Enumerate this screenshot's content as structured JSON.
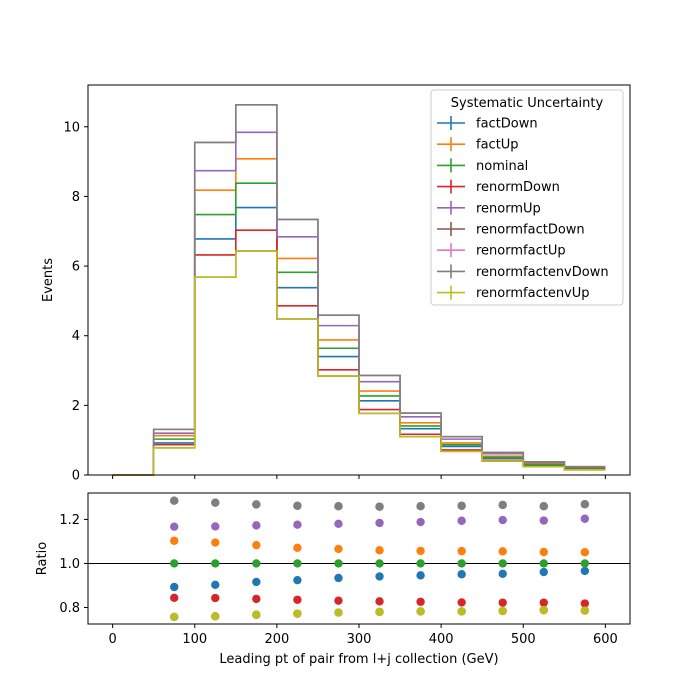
{
  "chart_data": {
    "type": "step",
    "x_edges": [
      0,
      50,
      100,
      150,
      200,
      250,
      300,
      350,
      400,
      450,
      500,
      550,
      600
    ],
    "xlim": [
      -30,
      630
    ],
    "x_ticks": [
      0,
      100,
      200,
      300,
      400,
      500,
      600
    ],
    "xlabel": "Leading pt of pair from l+j collection (GeV)",
    "top_panel": {
      "ylabel": "Events",
      "ylim": [
        0,
        11.2
      ],
      "y_ticks": [
        0,
        2,
        4,
        6,
        8,
        10
      ],
      "legend_title": "Systematic Uncertainty",
      "legend_position": "upper right",
      "series": [
        {
          "name": "factDown",
          "color": "#1f77b4",
          "values": [
            0,
            0.92,
            6.78,
            7.68,
            5.38,
            3.4,
            2.13,
            1.33,
            0.82,
            0.48,
            0.29,
            0.18
          ]
        },
        {
          "name": "factUp",
          "color": "#ff7f0e",
          "values": [
            0,
            1.13,
            8.18,
            9.08,
            6.22,
            3.88,
            2.41,
            1.5,
            0.92,
            0.54,
            0.32,
            0.2
          ]
        },
        {
          "name": "nominal",
          "color": "#2ca02c",
          "values": [
            0,
            1.03,
            7.48,
            8.38,
            5.82,
            3.64,
            2.27,
            1.41,
            0.87,
            0.51,
            0.3,
            0.19
          ]
        },
        {
          "name": "renormDown",
          "color": "#d62728",
          "values": [
            0,
            0.87,
            6.32,
            7.03,
            4.86,
            3.02,
            1.88,
            1.17,
            0.72,
            0.42,
            0.25,
            0.16
          ]
        },
        {
          "name": "renormUp",
          "color": "#9467bd",
          "values": [
            0,
            1.2,
            8.74,
            9.84,
            6.84,
            4.29,
            2.68,
            1.67,
            1.03,
            0.61,
            0.36,
            0.23
          ]
        },
        {
          "name": "renormfactDown",
          "color": "#8c564b",
          "values": [
            0,
            0.78,
            5.68,
            6.43,
            4.48,
            2.84,
            1.77,
            1.1,
            0.68,
            0.4,
            0.24,
            0.15
          ]
        },
        {
          "name": "renormfactUp",
          "color": "#e377c2",
          "values": [
            0,
            1.31,
            9.55,
            10.63,
            7.34,
            4.59,
            2.86,
            1.78,
            1.1,
            0.65,
            0.38,
            0.24
          ]
        },
        {
          "name": "renormfactenvDown",
          "color": "#7f7f7f",
          "values": [
            0,
            1.31,
            9.55,
            10.63,
            7.34,
            4.59,
            2.86,
            1.78,
            1.1,
            0.65,
            0.38,
            0.24
          ]
        },
        {
          "name": "renormfactenvUp",
          "color": "#bcbd22",
          "values": [
            0,
            0.78,
            5.68,
            6.43,
            4.48,
            2.84,
            1.77,
            1.1,
            0.68,
            0.4,
            0.24,
            0.15
          ]
        }
      ]
    },
    "bottom_panel": {
      "ylabel": "Ratio",
      "ylim": [
        0.725,
        1.32
      ],
      "y_ticks": [
        0.8,
        1.0,
        1.2
      ],
      "y_tick_labels": [
        "0.8",
        "1.0",
        "1.2"
      ],
      "reference_line": 1.0,
      "x": [
        75,
        125,
        175,
        225,
        275,
        325,
        375,
        425,
        475,
        525,
        575
      ],
      "series": [
        {
          "name": "factDown",
          "color": "#1f77b4",
          "values": [
            0.893,
            0.903,
            0.916,
            0.924,
            0.934,
            0.941,
            0.946,
            0.951,
            0.953,
            0.961,
            0.966
          ]
        },
        {
          "name": "factUp",
          "color": "#ff7f0e",
          "values": [
            1.103,
            1.095,
            1.083,
            1.071,
            1.066,
            1.06,
            1.057,
            1.056,
            1.055,
            1.052,
            1.051
          ]
        },
        {
          "name": "nominal",
          "color": "#2ca02c",
          "values": [
            1,
            1,
            1,
            1,
            1,
            1,
            1,
            1,
            1,
            1,
            1
          ]
        },
        {
          "name": "renormDown",
          "color": "#d62728",
          "values": [
            0.844,
            0.843,
            0.839,
            0.835,
            0.831,
            0.828,
            0.826,
            0.823,
            0.822,
            0.822,
            0.818
          ]
        },
        {
          "name": "renormUp",
          "color": "#9467bd",
          "values": [
            1.167,
            1.168,
            1.173,
            1.176,
            1.18,
            1.184,
            1.188,
            1.194,
            1.197,
            1.195,
            1.203
          ]
        },
        {
          "name": "renormfactDown",
          "color": "#8c564b",
          "values": [
            0.757,
            0.76,
            0.767,
            0.772,
            0.777,
            0.78,
            0.782,
            0.782,
            0.784,
            0.788,
            0.786
          ]
        },
        {
          "name": "renormfactUp",
          "color": "#e377c2",
          "values": [
            1.285,
            1.276,
            1.268,
            1.262,
            1.26,
            1.258,
            1.26,
            1.262,
            1.266,
            1.26,
            1.269
          ]
        },
        {
          "name": "renormfactenvDown",
          "color": "#7f7f7f",
          "values": [
            1.285,
            1.276,
            1.268,
            1.262,
            1.26,
            1.258,
            1.26,
            1.262,
            1.266,
            1.26,
            1.269
          ]
        },
        {
          "name": "renormfactenvUp",
          "color": "#bcbd22",
          "values": [
            0.757,
            0.76,
            0.767,
            0.772,
            0.777,
            0.78,
            0.782,
            0.782,
            0.784,
            0.788,
            0.786
          ]
        }
      ]
    }
  }
}
